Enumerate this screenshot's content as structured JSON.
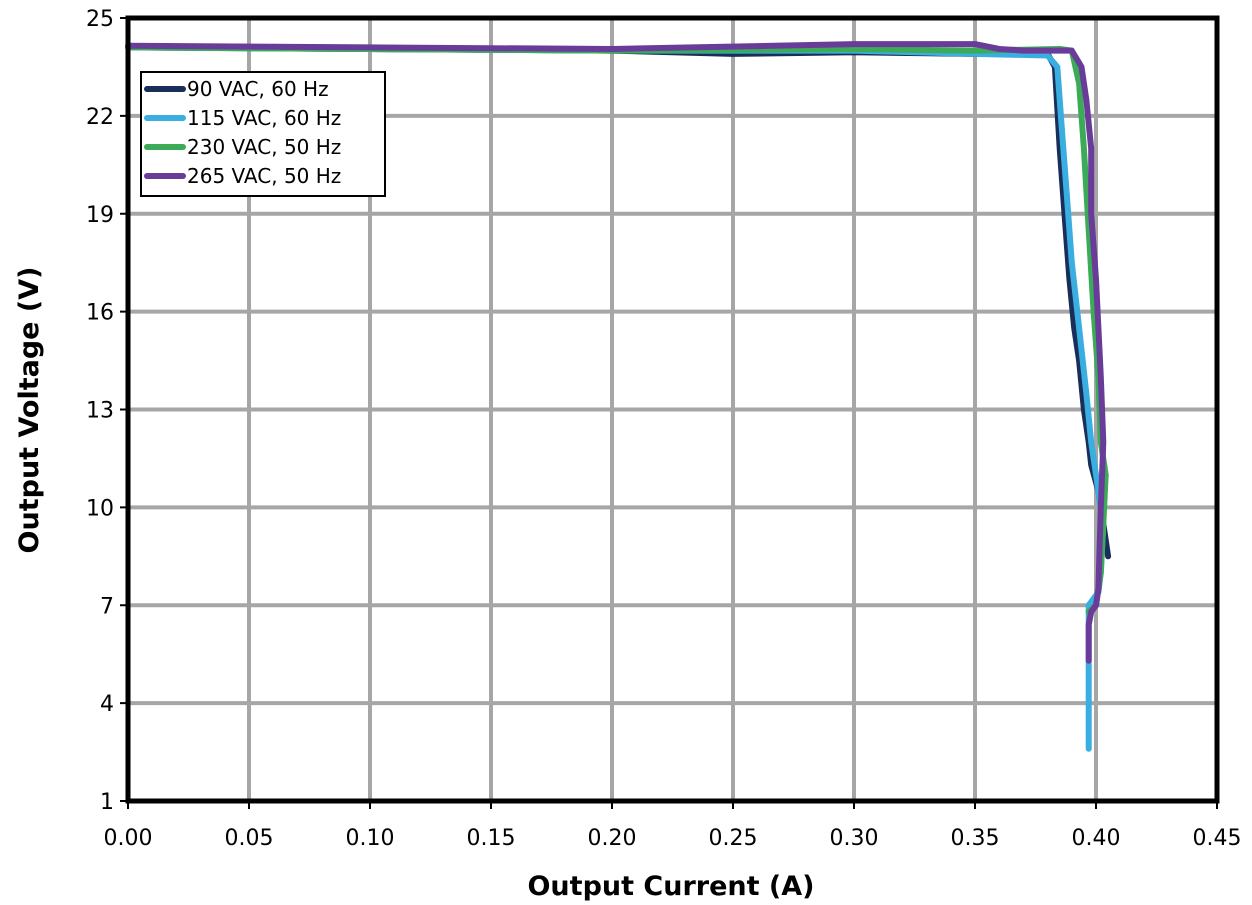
{
  "chart_data": {
    "type": "line",
    "title": "",
    "xlabel": "Output Current (A)",
    "ylabel": "Output Voltage (V)",
    "xlim": [
      0,
      0.45
    ],
    "ylim": [
      1,
      25
    ],
    "xticks": [
      "0.00",
      "0.05",
      "0.10",
      "0.15",
      "0.20",
      "0.25",
      "0.30",
      "0.35",
      "0.40",
      "0.45"
    ],
    "yticks": [
      "1",
      "4",
      "7",
      "10",
      "13",
      "16",
      "19",
      "22",
      "25"
    ],
    "grid": true,
    "legend_position": "top-left",
    "series": [
      {
        "name": "90 VAC, 60 Hz",
        "color": "#1a2e5a",
        "points": [
          [
            0.0,
            24.1
          ],
          [
            0.1,
            24.05
          ],
          [
            0.2,
            24.0
          ],
          [
            0.25,
            23.9
          ],
          [
            0.3,
            23.95
          ],
          [
            0.35,
            23.9
          ],
          [
            0.38,
            23.9
          ],
          [
            0.383,
            23.5
          ],
          [
            0.385,
            21.0
          ],
          [
            0.387,
            19.0
          ],
          [
            0.389,
            17.0
          ],
          [
            0.391,
            15.5
          ],
          [
            0.393,
            14.5
          ],
          [
            0.395,
            13.0
          ],
          [
            0.397,
            12.0
          ],
          [
            0.398,
            11.3
          ],
          [
            0.401,
            10.5
          ],
          [
            0.403,
            9.5
          ],
          [
            0.405,
            8.5
          ]
        ]
      },
      {
        "name": "115 VAC, 60 Hz",
        "color": "#3aaee0",
        "points": [
          [
            0.0,
            24.1
          ],
          [
            0.1,
            24.05
          ],
          [
            0.2,
            24.0
          ],
          [
            0.3,
            24.0
          ],
          [
            0.35,
            23.9
          ],
          [
            0.38,
            23.85
          ],
          [
            0.384,
            23.5
          ],
          [
            0.386,
            21.5
          ],
          [
            0.388,
            19.5
          ],
          [
            0.39,
            17.5
          ],
          [
            0.393,
            15.5
          ],
          [
            0.396,
            13.5
          ],
          [
            0.398,
            12.0
          ],
          [
            0.401,
            10.5
          ],
          [
            0.403,
            9.5
          ],
          [
            0.402,
            8.0
          ],
          [
            0.401,
            7.4
          ],
          [
            0.397,
            7.0
          ],
          [
            0.397,
            5.0
          ],
          [
            0.397,
            2.6
          ]
        ]
      },
      {
        "name": "230 VAC, 50 Hz",
        "color": "#3cab58",
        "points": [
          [
            0.0,
            24.1
          ],
          [
            0.1,
            24.05
          ],
          [
            0.2,
            24.0
          ],
          [
            0.3,
            24.05
          ],
          [
            0.35,
            24.0
          ],
          [
            0.385,
            24.05
          ],
          [
            0.39,
            24.0
          ],
          [
            0.393,
            23.0
          ],
          [
            0.395,
            21.0
          ],
          [
            0.397,
            18.5
          ],
          [
            0.399,
            16.0
          ],
          [
            0.401,
            14.0
          ],
          [
            0.402,
            12.0
          ],
          [
            0.404,
            11.0
          ],
          [
            0.403,
            9.5
          ],
          [
            0.402,
            8.0
          ],
          [
            0.4,
            7.0
          ],
          [
            0.397,
            6.8
          ]
        ]
      },
      {
        "name": "265 VAC, 50 Hz",
        "color": "#6a3c9a",
        "points": [
          [
            0.0,
            24.15
          ],
          [
            0.1,
            24.1
          ],
          [
            0.2,
            24.05
          ],
          [
            0.3,
            24.2
          ],
          [
            0.35,
            24.2
          ],
          [
            0.36,
            24.05
          ],
          [
            0.37,
            24.0
          ],
          [
            0.39,
            24.0
          ],
          [
            0.394,
            23.5
          ],
          [
            0.396,
            22.5
          ],
          [
            0.398,
            21.0
          ],
          [
            0.398,
            19.0
          ],
          [
            0.4,
            17.0
          ],
          [
            0.401,
            15.5
          ],
          [
            0.402,
            14.0
          ],
          [
            0.403,
            12.0
          ],
          [
            0.402,
            10.0
          ],
          [
            0.401,
            7.5
          ],
          [
            0.4,
            7.0
          ],
          [
            0.398,
            6.8
          ],
          [
            0.397,
            6.4
          ],
          [
            0.397,
            5.3
          ]
        ]
      }
    ]
  }
}
